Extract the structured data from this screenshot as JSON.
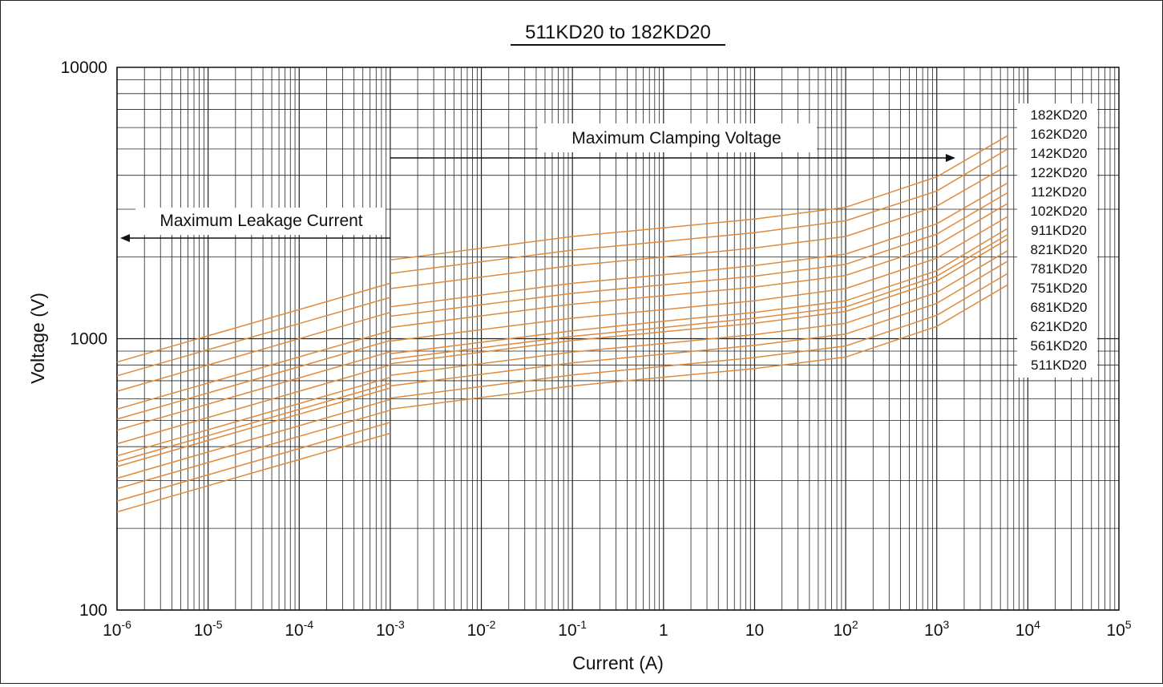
{
  "chart_data": {
    "type": "line",
    "title": "511KD20 to 182KD20",
    "xlabel": "Current (A)",
    "ylabel": "Voltage (V)",
    "x_scale": "log",
    "y_scale": "log",
    "xlim": [
      1e-06,
      100000
    ],
    "ylim": [
      100,
      10000
    ],
    "grid": true,
    "x_ticks": [
      {
        "base": "10",
        "exp": "-6",
        "value": 1e-06
      },
      {
        "base": "10",
        "exp": "-5",
        "value": 1e-05
      },
      {
        "base": "10",
        "exp": "-4",
        "value": 0.0001
      },
      {
        "base": "10",
        "exp": "-3",
        "value": 0.001
      },
      {
        "base": "10",
        "exp": "-2",
        "value": 0.01
      },
      {
        "base": "10",
        "exp": "-1",
        "value": 0.1
      },
      {
        "base": "1",
        "exp": "",
        "value": 1
      },
      {
        "base": "10",
        "exp": "",
        "value": 10
      },
      {
        "base": "10",
        "exp": "2",
        "value": 100
      },
      {
        "base": "10",
        "exp": "3",
        "value": 1000
      },
      {
        "base": "10",
        "exp": "4",
        "value": 10000
      },
      {
        "base": "10",
        "exp": "5",
        "value": 100000
      }
    ],
    "y_ticks": [
      {
        "label": "100",
        "value": 100
      },
      {
        "label": "1000",
        "value": 1000
      },
      {
        "label": "10000",
        "value": 10000
      }
    ],
    "line_color": "#e08a3c",
    "annotations": [
      {
        "text": "Maximum Clamping Voltage",
        "arrow": "right",
        "x_from": 0.001,
        "x_to": 1600
      },
      {
        "text": "Maximum Leakage Current",
        "arrow": "left",
        "x_from": 0.001,
        "x_to": 1e-06
      }
    ],
    "legend_placement": "right",
    "legend": [
      "182KD20",
      "162KD20",
      "142KD20",
      "122KD20",
      "112KD20",
      "102KD20",
      "911KD20",
      "821KD20",
      "781KD20",
      "751KD20",
      "681KD20",
      "621KD20",
      "561KD20",
      "511KD20"
    ],
    "x_leakage": [
      1e-06,
      0.001
    ],
    "x_clamp": [
      0.001,
      0.1,
      1,
      10,
      100,
      1000,
      6000
    ],
    "series": [
      {
        "name": "182KD20",
        "leakage": [
          820,
          1600
        ],
        "clamp": [
          1950,
          2380,
          2560,
          2760,
          3050,
          3950,
          5600
        ]
      },
      {
        "name": "162KD20",
        "leakage": [
          730,
          1420
        ],
        "clamp": [
          1740,
          2120,
          2280,
          2460,
          2720,
          3500,
          5000
        ]
      },
      {
        "name": "142KD20",
        "leakage": [
          640,
          1250
        ],
        "clamp": [
          1530,
          1860,
          2000,
          2160,
          2380,
          3080,
          4350
        ]
      },
      {
        "name": "122KD20",
        "leakage": [
          550,
          1070
        ],
        "clamp": [
          1310,
          1600,
          1720,
          1860,
          2050,
          2650,
          3750
        ]
      },
      {
        "name": "112KD20",
        "leakage": [
          505,
          985
        ],
        "clamp": [
          1210,
          1470,
          1580,
          1700,
          1880,
          2430,
          3450
        ]
      },
      {
        "name": "102KD20",
        "leakage": [
          460,
          895
        ],
        "clamp": [
          1100,
          1340,
          1440,
          1550,
          1710,
          2210,
          3150
        ]
      },
      {
        "name": "911KD20",
        "leakage": [
          410,
          800
        ],
        "clamp": [
          980,
          1190,
          1280,
          1380,
          1530,
          1980,
          2820
        ]
      },
      {
        "name": "821KD20",
        "leakage": [
          370,
          720
        ],
        "clamp": [
          880,
          1070,
          1160,
          1250,
          1380,
          1780,
          2550
        ]
      },
      {
        "name": "781KD20",
        "leakage": [
          352,
          685
        ],
        "clamp": [
          840,
          1020,
          1100,
          1190,
          1310,
          1700,
          2420
        ]
      },
      {
        "name": "751KD20",
        "leakage": [
          338,
          658
        ],
        "clamp": [
          808,
          985,
          1060,
          1140,
          1260,
          1630,
          2330
        ]
      },
      {
        "name": "681KD20",
        "leakage": [
          306,
          597
        ],
        "clamp": [
          733,
          893,
          960,
          1035,
          1140,
          1480,
          2110
        ]
      },
      {
        "name": "621KD20",
        "leakage": [
          280,
          545
        ],
        "clamp": [
          670,
          815,
          877,
          945,
          1040,
          1350,
          1930
        ]
      },
      {
        "name": "561KD20",
        "leakage": [
          252,
          492
        ],
        "clamp": [
          604,
          735,
          791,
          852,
          940,
          1220,
          1740
        ]
      },
      {
        "name": "511KD20",
        "leakage": [
          230,
          448
        ],
        "clamp": [
          550,
          670,
          721,
          776,
          856,
          1110,
          1580
        ]
      }
    ]
  }
}
